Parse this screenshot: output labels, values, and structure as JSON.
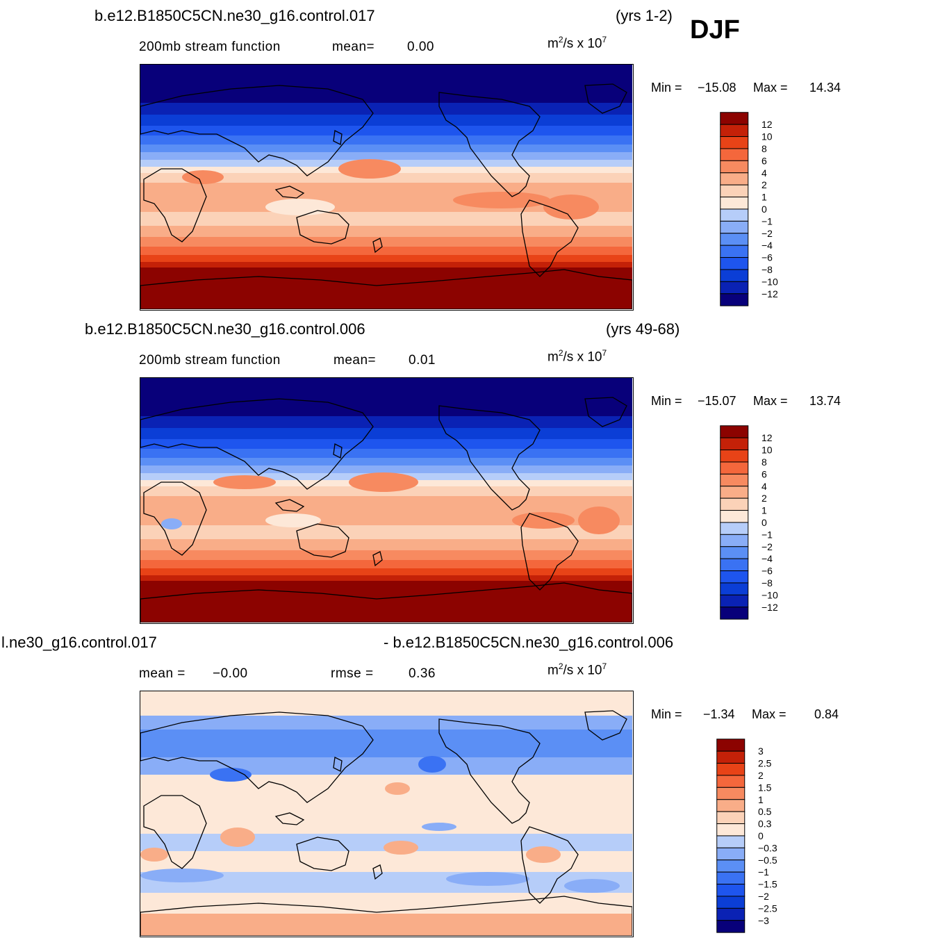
{
  "season": "DJF",
  "panels": [
    {
      "case_title": "b.e12.B1850C5CN.ne30_g16.control.017",
      "years": "(yrs 1-2)",
      "variable": "200mb stream function",
      "mean_label": "mean=",
      "mean_value": "0.00",
      "units_base": "m",
      "units_exp": "2",
      "units_mid": "/s x 10",
      "units_exp2": "7",
      "min_label": "Min =",
      "min_value": "−15.08",
      "max_label": "Max =",
      "max_value": "14.34"
    },
    {
      "case_title": "b.e12.B1850C5CN.ne30_g16.control.006",
      "years": "(yrs 49-68)",
      "variable": "200mb stream function",
      "mean_label": "mean=",
      "mean_value": "0.01",
      "units_base": "m",
      "units_exp": "2",
      "units_mid": "/s x 10",
      "units_exp2": "7",
      "min_label": "Min =",
      "min_value": "−15.07",
      "max_label": "Max =",
      "max_value": "13.74"
    },
    {
      "case_title_left": "l.ne30_g16.control.017",
      "case_title_right": "- b.e12.B1850C5CN.ne30_g16.control.006",
      "mean_label": "mean =",
      "mean_value": "−0.00",
      "rmse_label": "rmse =",
      "rmse_value": "0.36",
      "units_base": "m",
      "units_exp": "2",
      "units_mid": "/s x 10",
      "units_exp2": "7",
      "min_label": "Min =",
      "min_value": "−1.34",
      "max_label": "Max =",
      "max_value": "0.84"
    }
  ],
  "chart_data": [
    {
      "type": "heatmap",
      "colorbar_labels": [
        "12",
        "10",
        "8",
        "6",
        "4",
        "2",
        "1",
        "0",
        "−1",
        "−2",
        "−4",
        "−6",
        "−8",
        "−10",
        "−12"
      ],
      "zonal_bands_north_to_south": [
        -16,
        -12,
        -10,
        -8,
        -6,
        -4,
        -2,
        -1,
        0,
        1,
        2,
        1,
        2,
        4,
        6,
        8,
        10,
        12,
        16
      ]
    },
    {
      "type": "heatmap",
      "colorbar_labels": [
        "12",
        "10",
        "8",
        "6",
        "4",
        "2",
        "1",
        "0",
        "−1",
        "−2",
        "−4",
        "−6",
        "−8",
        "−10",
        "−12"
      ],
      "zonal_bands_north_to_south": [
        -16,
        -12,
        -10,
        -8,
        -6,
        -4,
        -2,
        -1,
        0,
        1,
        2,
        1,
        2,
        4,
        6,
        8,
        10,
        12,
        16
      ]
    },
    {
      "type": "heatmap",
      "colorbar_labels": [
        "3",
        "2.5",
        "2",
        "1.5",
        "1",
        "0.5",
        "0.3",
        "0",
        "−0.3",
        "−0.5",
        "−1",
        "−1.5",
        "−2",
        "−2.5",
        "−3"
      ],
      "zonal_bands_north_to_south": [
        0.1,
        -0.2,
        -0.4,
        -0.6,
        -0.2,
        0.1,
        0.2,
        0.1,
        -0.1,
        0.1,
        -0.1,
        0.1,
        0.5
      ]
    }
  ],
  "palette": [
    "#08007a",
    "#0a22b4",
    "#0b3ed6",
    "#1e55ee",
    "#3a72f3",
    "#5b8ff5",
    "#89adf7",
    "#b6cdf9",
    "#d9e6fb",
    "#fde8d8",
    "#fbd2b8",
    "#f9ad88",
    "#f78a60",
    "#f4673c",
    "#e84317",
    "#c42108",
    "#8c0300"
  ]
}
